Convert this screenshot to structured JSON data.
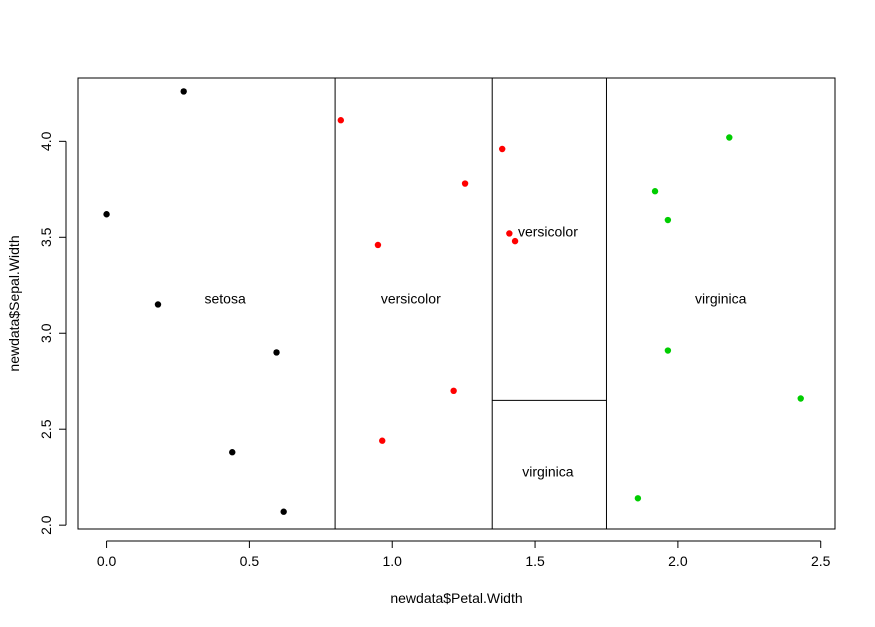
{
  "chart_data": {
    "type": "scatter",
    "title": "",
    "xlabel": "newdata$Petal.Width",
    "ylabel": "newdata$Sepal.Width",
    "xlim": [
      -0.1,
      2.55
    ],
    "ylim": [
      1.98,
      4.33
    ],
    "xticks": [
      0.0,
      0.5,
      1.0,
      1.5,
      2.0,
      2.5
    ],
    "xtick_labels": [
      "0.0",
      "0.5",
      "1.0",
      "1.5",
      "2.0",
      "2.5"
    ],
    "yticks": [
      2.0,
      2.5,
      3.0,
      3.5,
      4.0
    ],
    "ytick_labels": [
      "2.0",
      "2.5",
      "3.0",
      "3.5",
      "4.0"
    ],
    "grid": false,
    "colors": {
      "setosa": "#000000",
      "versicolor": "#ff0000",
      "virginica": "#00cd00"
    },
    "series": [
      {
        "color": "#000000",
        "points": [
          {
            "x": 0.0,
            "y": 3.62
          },
          {
            "x": 0.27,
            "y": 4.26
          },
          {
            "x": 0.18,
            "y": 3.15
          },
          {
            "x": 0.595,
            "y": 2.9
          },
          {
            "x": 0.44,
            "y": 2.38
          },
          {
            "x": 0.62,
            "y": 2.07
          }
        ]
      },
      {
        "color": "#ff0000",
        "points": [
          {
            "x": 0.82,
            "y": 4.11
          },
          {
            "x": 0.95,
            "y": 3.46
          },
          {
            "x": 1.255,
            "y": 3.78
          },
          {
            "x": 1.215,
            "y": 2.7
          },
          {
            "x": 0.965,
            "y": 2.44
          },
          {
            "x": 1.385,
            "y": 3.96
          },
          {
            "x": 1.41,
            "y": 3.52
          },
          {
            "x": 1.43,
            "y": 3.48
          }
        ]
      },
      {
        "color": "#00cd00",
        "points": [
          {
            "x": 2.18,
            "y": 4.02
          },
          {
            "x": 1.92,
            "y": 3.74
          },
          {
            "x": 1.965,
            "y": 3.59
          },
          {
            "x": 1.965,
            "y": 2.91
          },
          {
            "x": 2.43,
            "y": 2.66
          },
          {
            "x": 1.86,
            "y": 2.14
          }
        ]
      }
    ],
    "partition_lines": [
      {
        "orientation": "vertical",
        "x": 0.8
      },
      {
        "orientation": "vertical",
        "x": 1.35
      },
      {
        "orientation": "vertical",
        "x": 1.75
      },
      {
        "orientation": "horizontal",
        "y": 2.65,
        "x_from": 1.35,
        "x_to": 1.75
      }
    ],
    "region_labels": [
      {
        "text": "setosa",
        "x": 0.415,
        "y": 3.18
      },
      {
        "text": "versicolor",
        "x": 1.065,
        "y": 3.18
      },
      {
        "text": "versicolor",
        "x": 1.545,
        "y": 3.53
      },
      {
        "text": "virginica",
        "x": 1.545,
        "y": 2.28
      },
      {
        "text": "virginica",
        "x": 2.15,
        "y": 3.18
      }
    ]
  }
}
